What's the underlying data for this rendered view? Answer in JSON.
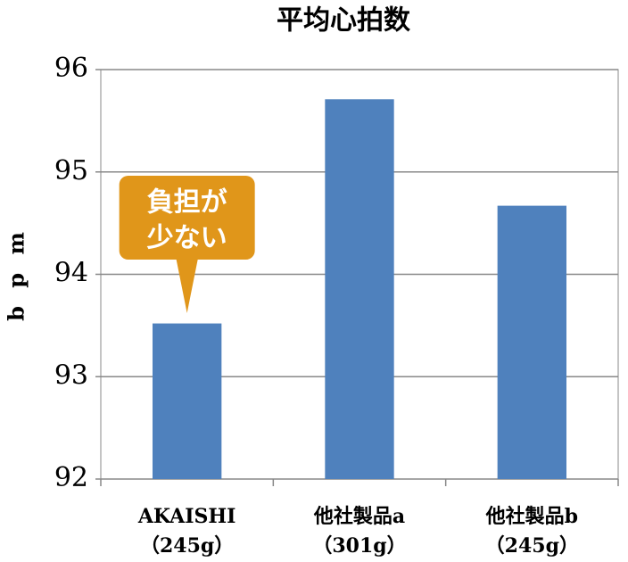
{
  "chart_data": {
    "type": "bar",
    "title": "平均心拍数",
    "y_label": "b p m",
    "categories": [
      [
        "AKAISHI",
        "（245g）"
      ],
      [
        "他社製品a",
        "（301g）"
      ],
      [
        "他社製品b",
        "（245g）"
      ]
    ],
    "values": [
      93.52,
      95.71,
      94.67
    ],
    "color": "#4f81bd",
    "ylim": [
      92,
      96
    ],
    "yticks": [
      92,
      93,
      94,
      95,
      96
    ],
    "grid": true,
    "annotation": {
      "lines": [
        "負担が",
        "少ない"
      ],
      "color": "#e0961a"
    }
  }
}
